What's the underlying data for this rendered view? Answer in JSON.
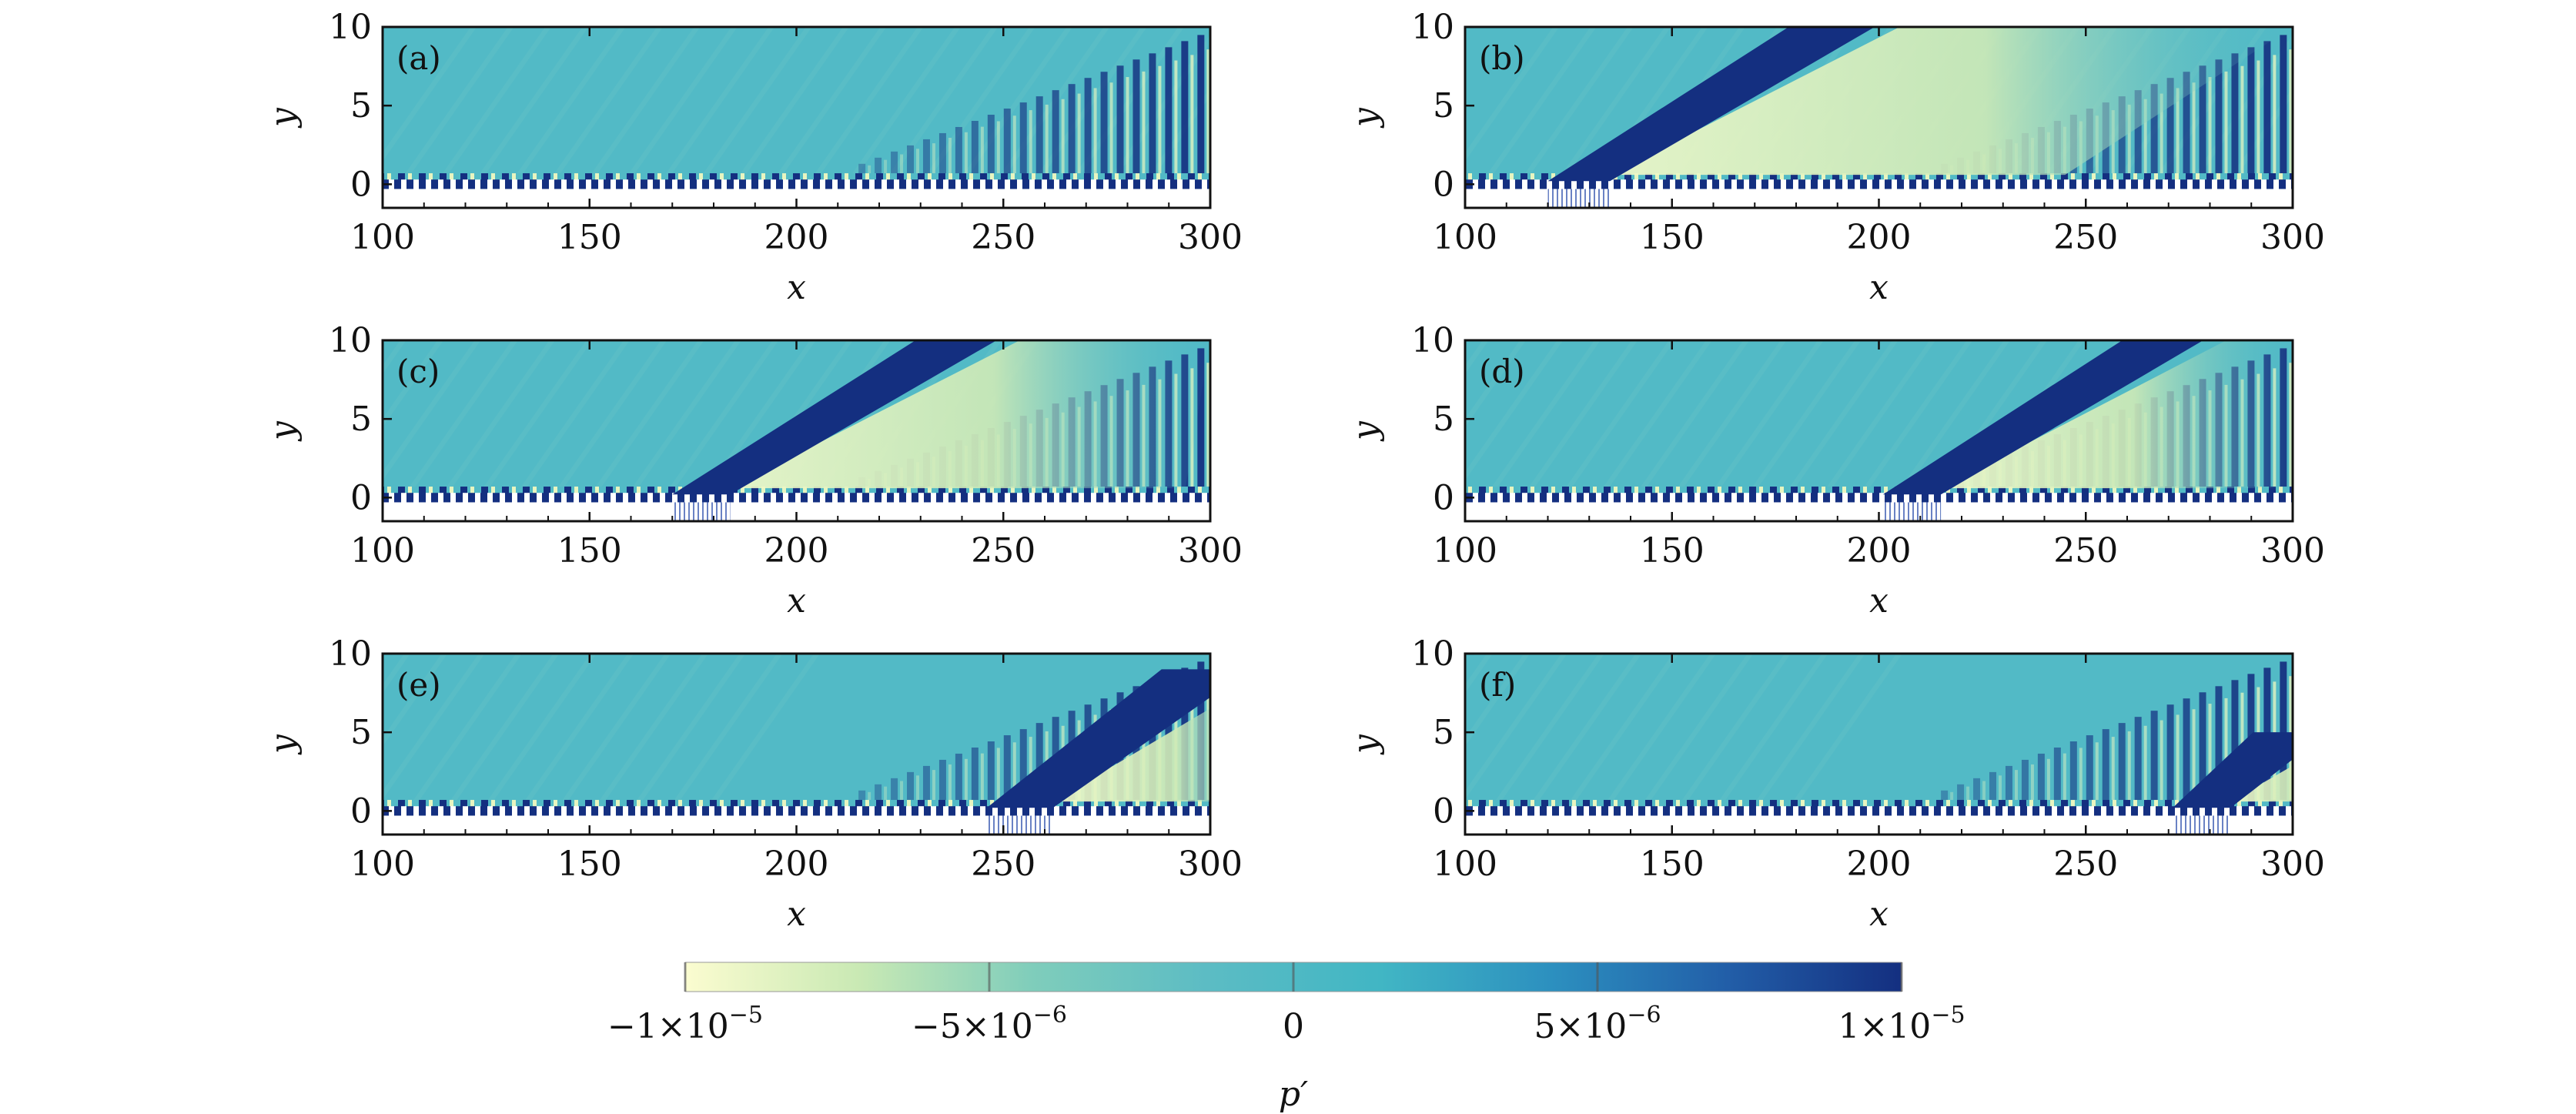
{
  "chart_data": [
    {
      "panel": "(a)",
      "type": "heatmap",
      "xlabel": "x",
      "ylabel": "y",
      "xlim": [
        100,
        300
      ],
      "ylim": [
        -1.5,
        10
      ],
      "xticks": [
        "100",
        "150",
        "200",
        "250",
        "300"
      ],
      "yticks": [
        "0",
        "5",
        "10"
      ],
      "wavepacket": null
    },
    {
      "panel": "(b)",
      "type": "heatmap",
      "xlabel": "x",
      "ylabel": "y",
      "xlim": [
        100,
        300
      ],
      "ylim": [
        -1.5,
        10
      ],
      "xticks": [
        "100",
        "150",
        "200",
        "250",
        "300"
      ],
      "yticks": [
        "0",
        "5",
        "10"
      ],
      "wavepacket": {
        "x_start": 120,
        "x_end": 135,
        "x_top": 190,
        "y_top": 10
      }
    },
    {
      "panel": "(c)",
      "type": "heatmap",
      "xlabel": "x",
      "ylabel": "y",
      "xlim": [
        100,
        300
      ],
      "ylim": [
        -1.5,
        10
      ],
      "xticks": [
        "100",
        "150",
        "200",
        "250",
        "300"
      ],
      "yticks": [
        "0",
        "5",
        "10"
      ],
      "wavepacket": {
        "x_start": 170,
        "x_end": 184,
        "x_top": 240,
        "y_top": 10
      }
    },
    {
      "panel": "(d)",
      "type": "heatmap",
      "xlabel": "x",
      "ylabel": "y",
      "xlim": [
        100,
        300
      ],
      "ylim": [
        -1.5,
        10
      ],
      "xticks": [
        "100",
        "150",
        "200",
        "250",
        "300"
      ],
      "yticks": [
        "0",
        "5",
        "10"
      ],
      "wavepacket": {
        "x_start": 201,
        "x_end": 215,
        "x_top": 270,
        "y_top": 10
      }
    },
    {
      "panel": "(e)",
      "type": "heatmap",
      "xlabel": "x",
      "ylabel": "y",
      "xlim": [
        100,
        300
      ],
      "ylim": [
        -1.5,
        10
      ],
      "xticks": [
        "100",
        "150",
        "200",
        "250",
        "300"
      ],
      "yticks": [
        "0",
        "5",
        "10"
      ],
      "wavepacket": {
        "x_start": 246,
        "x_end": 262,
        "x_top": 300,
        "y_top": 9
      }
    },
    {
      "panel": "(f)",
      "type": "heatmap",
      "xlabel": "x",
      "ylabel": "y",
      "xlim": [
        100,
        300
      ],
      "ylim": [
        -1.5,
        10
      ],
      "xticks": [
        "100",
        "150",
        "200",
        "250",
        "300"
      ],
      "yticks": [
        "0",
        "5",
        "10"
      ],
      "wavepacket": {
        "x_start": 271,
        "x_end": 285,
        "x_top": 300,
        "y_top": 5
      }
    }
  ],
  "colorbar": {
    "label": "p′",
    "range": [
      -1e-05,
      1e-05
    ],
    "ticks": [
      {
        "value": -1e-05,
        "label": "−1×10",
        "exp": "−5"
      },
      {
        "value": -5e-06,
        "label": "−5×10",
        "exp": "−6"
      },
      {
        "value": 0,
        "label": "0",
        "exp": ""
      },
      {
        "value": 5e-06,
        "label": "5×10",
        "exp": "−6"
      },
      {
        "value": 1e-05,
        "label": "1×10",
        "exp": "−5"
      }
    ],
    "colors": [
      "#fbfcd0",
      "#c9e9b4",
      "#7fcdbb",
      "#5cbcc4",
      "#41b6c4",
      "#2c8fbf",
      "#225ea8",
      "#142f80"
    ]
  },
  "colors": {
    "background_field": "#52bac6",
    "positive": "#142f80",
    "negative": "#eef7c2"
  }
}
